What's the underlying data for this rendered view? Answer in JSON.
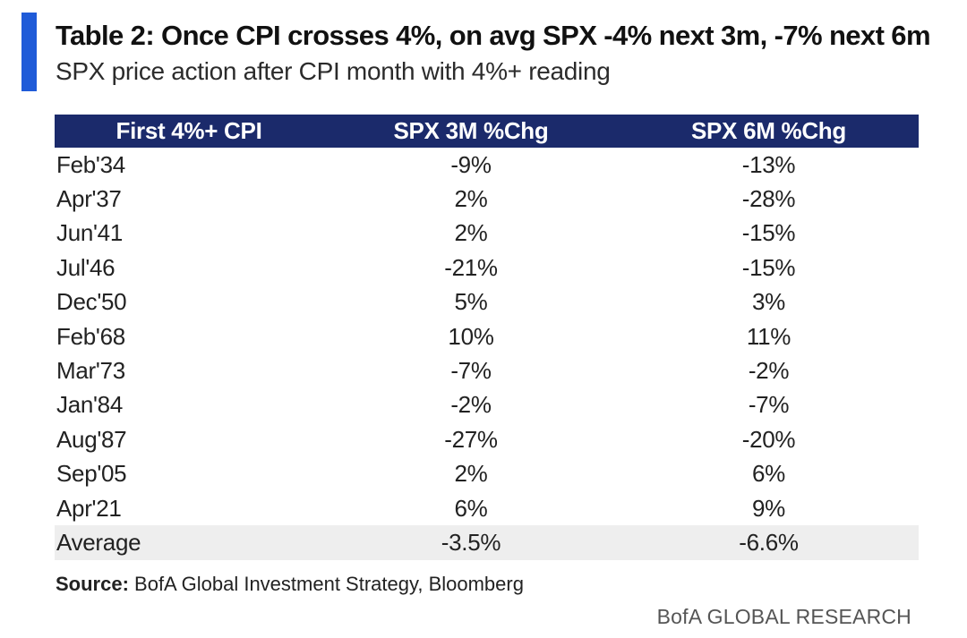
{
  "header": {
    "title": "Table 2: Once CPI crosses 4%, on avg SPX -4% next 3m, -7% next 6m",
    "subtitle": "SPX price action after CPI month with 4%+ reading",
    "accent_color": "#1f5bd8"
  },
  "chart_data": {
    "type": "table",
    "title": "Table 2: Once CPI crosses 4%, on avg SPX -4% next 3m, -7% next 6m",
    "subtitle": "SPX price action after CPI month with 4%+ reading",
    "columns": [
      "First 4%+ CPI",
      "SPX 3M %Chg",
      "SPX 6M %Chg"
    ],
    "rows": [
      [
        "Feb'34",
        "-9%",
        "-13%"
      ],
      [
        "Apr'37",
        "2%",
        "-28%"
      ],
      [
        "Jun'41",
        "2%",
        "-15%"
      ],
      [
        "Jul'46",
        "-21%",
        "-15%"
      ],
      [
        "Dec'50",
        "5%",
        "3%"
      ],
      [
        "Feb'68",
        "10%",
        "11%"
      ],
      [
        "Mar'73",
        "-7%",
        "-2%"
      ],
      [
        "Jan'84",
        "-2%",
        "-7%"
      ],
      [
        "Aug'87",
        "-27%",
        "-20%"
      ],
      [
        "Sep'05",
        "2%",
        "6%"
      ],
      [
        "Apr'21",
        "6%",
        "9%"
      ]
    ],
    "summary_row": [
      "Average",
      "-3.5%",
      "-6.6%"
    ],
    "header_color": "#1b2a6b",
    "summary_color": "#eeeeee"
  },
  "footer": {
    "source_label": "Source:",
    "source_text": " BofA Global Investment Strategy, Bloomberg",
    "brand": "BofA GLOBAL RESEARCH"
  }
}
